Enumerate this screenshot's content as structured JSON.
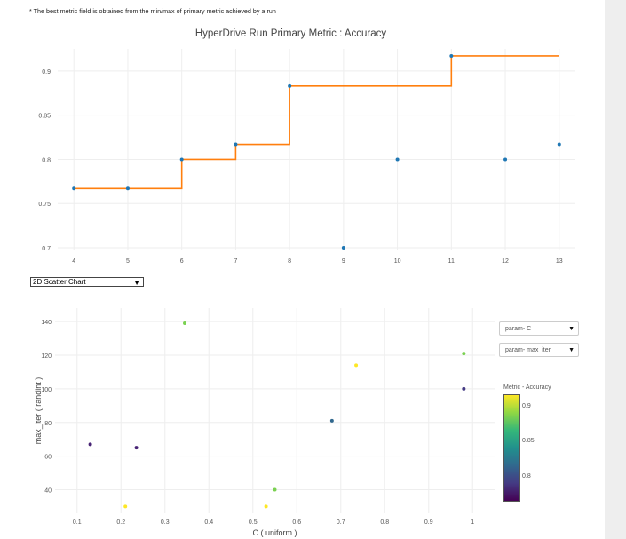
{
  "note": "* The best metric field is obtained from the min/max of primary metric achieved by a run",
  "chart_selector": {
    "value": "2D Scatter Chart",
    "chevron_icon": "chevron-down-icon"
  },
  "param_dropdowns": [
    {
      "label": "param- C",
      "icon": "caret-down-icon"
    },
    {
      "label": "param- max_iter",
      "icon": "caret-down-icon"
    }
  ],
  "colorbar": {
    "title": "Metric - Accuracy",
    "ticks": [
      "0.9",
      "0.85",
      "0.8"
    ],
    "colors": [
      "#fde725",
      "#8fd744",
      "#35b779",
      "#21908d",
      "#31688e",
      "#443a83",
      "#440154"
    ]
  },
  "chart_data": [
    {
      "type": "line",
      "title": "HyperDrive Run Primary Metric : Accuracy",
      "xlabel": "",
      "ylabel": "",
      "x_ticks": [
        "4",
        "5",
        "6",
        "7",
        "8",
        "9",
        "10",
        "11",
        "12",
        "13"
      ],
      "y_ticks": [
        "0.7",
        "0.75",
        "0.8",
        "0.85",
        "0.9"
      ],
      "xlim": [
        3.7,
        13.3
      ],
      "ylim": [
        0.697,
        0.925
      ],
      "grid": true,
      "point_color": "#1f77b4",
      "line_color": "#ff7f0e",
      "runs": [
        {
          "x": 4,
          "y": 0.767
        },
        {
          "x": 5,
          "y": 0.767
        },
        {
          "x": 6,
          "y": 0.8
        },
        {
          "x": 7,
          "y": 0.817
        },
        {
          "x": 8,
          "y": 0.883
        },
        {
          "x": 9,
          "y": 0.7
        },
        {
          "x": 10,
          "y": 0.8
        },
        {
          "x": 11,
          "y": 0.917
        },
        {
          "x": 12,
          "y": 0.8
        },
        {
          "x": 13,
          "y": 0.817
        }
      ],
      "best_metric": {
        "x": [
          4,
          5,
          6,
          7,
          8,
          9,
          10,
          11,
          12,
          13
        ],
        "y": [
          0.767,
          0.767,
          0.8,
          0.817,
          0.883,
          0.883,
          0.883,
          0.917,
          0.917,
          0.917
        ]
      }
    },
    {
      "type": "scatter",
      "xlabel": "C ( uniform )",
      "ylabel": "max_iter ( randint )",
      "x_ticks": [
        "0.1",
        "0.2",
        "0.3",
        "0.4",
        "0.5",
        "0.6",
        "0.7",
        "0.8",
        "0.9",
        "1"
      ],
      "y_ticks": [
        "40",
        "60",
        "80",
        "100",
        "120",
        "140"
      ],
      "xlim": [
        0.05,
        1.05
      ],
      "ylim": [
        26,
        148
      ],
      "grid": true,
      "points": [
        {
          "x": 0.13,
          "y": 67,
          "color": "#482475"
        },
        {
          "x": 0.21,
          "y": 30,
          "color": "#fde725"
        },
        {
          "x": 0.235,
          "y": 65,
          "color": "#482475"
        },
        {
          "x": 0.345,
          "y": 139,
          "color": "#7ad151"
        },
        {
          "x": 0.53,
          "y": 30,
          "color": "#fde725"
        },
        {
          "x": 0.55,
          "y": 40,
          "color": "#7ad151"
        },
        {
          "x": 0.68,
          "y": 81,
          "color": "#31688e"
        },
        {
          "x": 0.735,
          "y": 114,
          "color": "#fde725"
        },
        {
          "x": 0.98,
          "y": 121,
          "color": "#7ad151"
        },
        {
          "x": 0.98,
          "y": 100,
          "color": "#443a83"
        }
      ]
    }
  ]
}
